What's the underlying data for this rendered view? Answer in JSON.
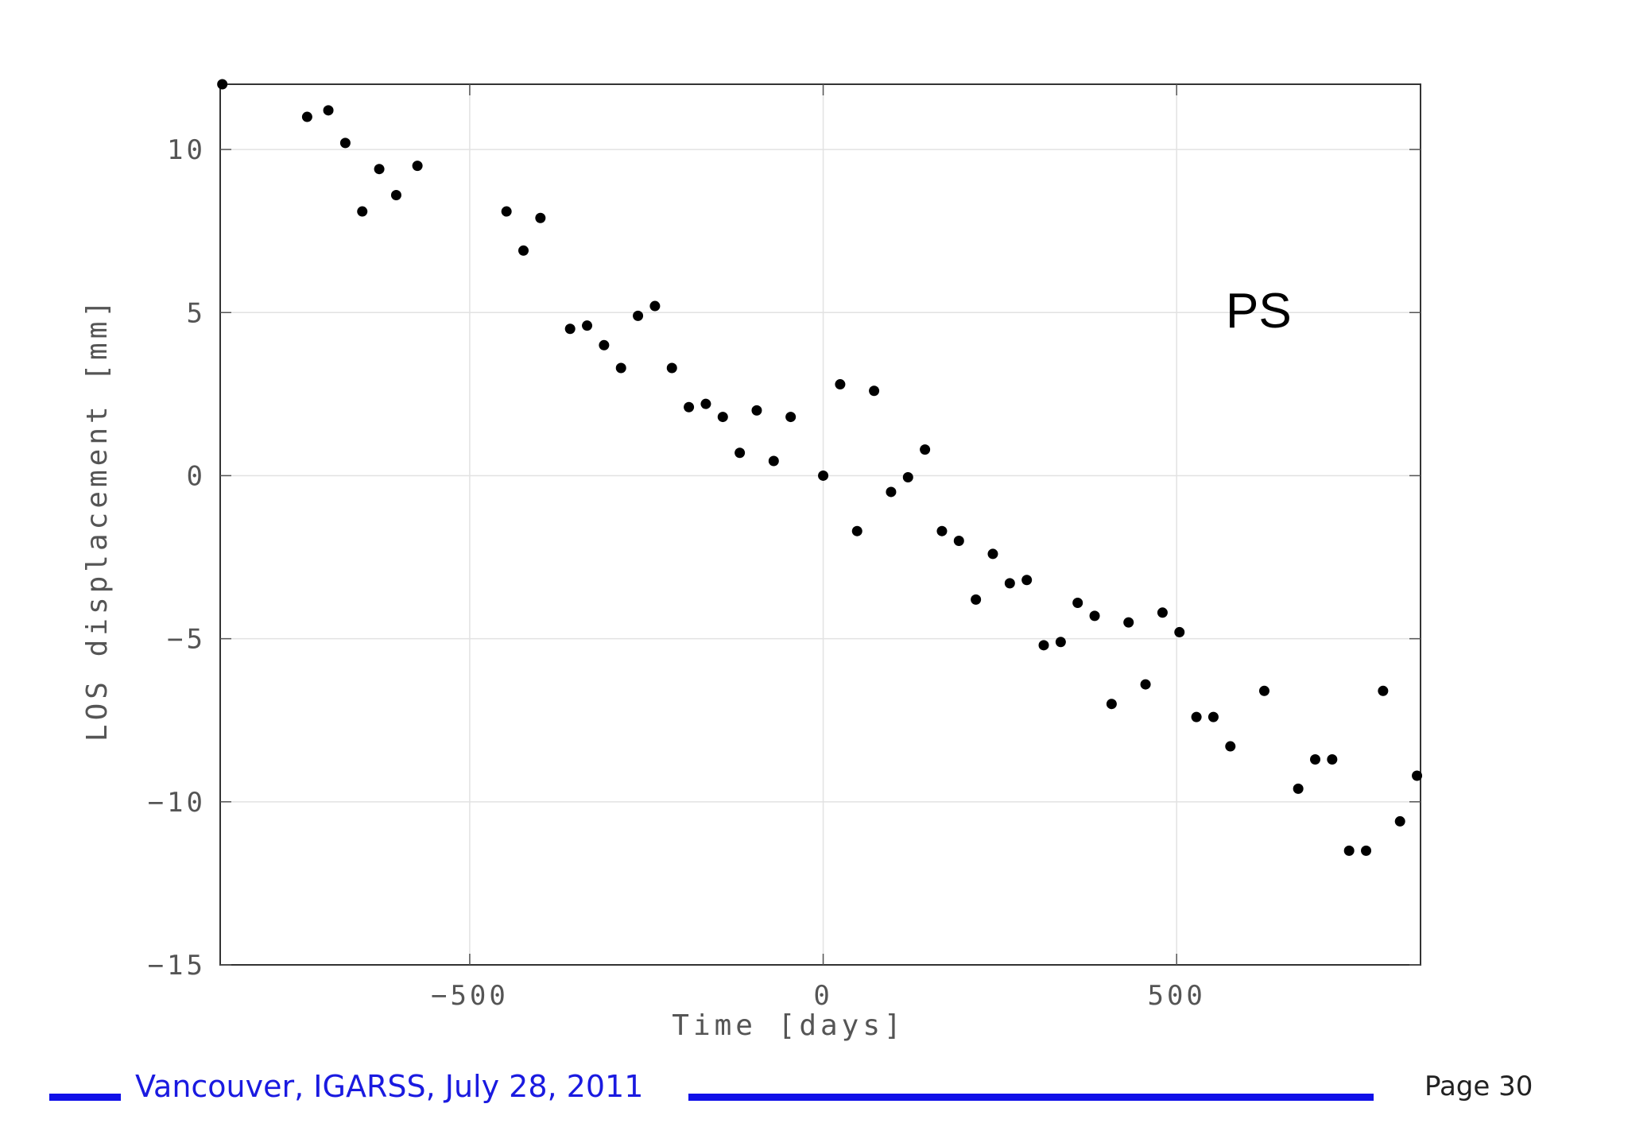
{
  "chart_data": {
    "type": "scatter",
    "xlabel": "Time [days]",
    "ylabel": "LOS displacement [mm]",
    "xlim": [
      -853,
      845
    ],
    "ylim": [
      -15,
      12
    ],
    "xticks": [
      -500,
      0,
      500
    ],
    "yticks": [
      -15,
      -10,
      -5,
      0,
      5,
      10
    ],
    "xtick_labels": [
      "−500",
      "0",
      "500"
    ],
    "ytick_labels": [
      "−15",
      "−10",
      "−5",
      "0",
      "5",
      "10"
    ],
    "grid": true,
    "marker_color": "#000000",
    "annotation": "PS",
    "points": [
      [
        -850,
        12.0
      ],
      [
        -730,
        11.0
      ],
      [
        -700,
        11.2
      ],
      [
        -676,
        10.2
      ],
      [
        -652,
        8.1
      ],
      [
        -628,
        9.4
      ],
      [
        -604,
        8.6
      ],
      [
        -574,
        9.5
      ],
      [
        -448,
        8.1
      ],
      [
        -424,
        6.9
      ],
      [
        -400,
        7.9
      ],
      [
        -358,
        4.5
      ],
      [
        -334,
        4.6
      ],
      [
        -310,
        4.0
      ],
      [
        -286,
        3.3
      ],
      [
        -262,
        4.9
      ],
      [
        -238,
        5.2
      ],
      [
        -214,
        3.3
      ],
      [
        -190,
        2.1
      ],
      [
        -166,
        2.2
      ],
      [
        -142,
        1.8
      ],
      [
        -118,
        0.7
      ],
      [
        -94,
        2.0
      ],
      [
        -70,
        0.45
      ],
      [
        -46,
        1.8
      ],
      [
        0,
        0.0
      ],
      [
        24,
        2.8
      ],
      [
        48,
        -1.7
      ],
      [
        72,
        2.6
      ],
      [
        96,
        -0.5
      ],
      [
        120,
        -0.05
      ],
      [
        144,
        0.8
      ],
      [
        168,
        -1.7
      ],
      [
        192,
        -2.0
      ],
      [
        216,
        -3.8
      ],
      [
        240,
        -2.4
      ],
      [
        264,
        -3.3
      ],
      [
        288,
        -3.2
      ],
      [
        312,
        -5.2
      ],
      [
        336,
        -5.1
      ],
      [
        360,
        -3.9
      ],
      [
        384,
        -4.3
      ],
      [
        408,
        -7.0
      ],
      [
        432,
        -4.5
      ],
      [
        456,
        -6.4
      ],
      [
        480,
        -4.2
      ],
      [
        504,
        -4.8
      ],
      [
        528,
        -7.4
      ],
      [
        552,
        -7.4
      ],
      [
        576,
        -8.3
      ],
      [
        624,
        -6.6
      ],
      [
        672,
        -9.6
      ],
      [
        696,
        -8.7
      ],
      [
        720,
        -8.7
      ],
      [
        744,
        -11.5
      ],
      [
        768,
        -11.5
      ],
      [
        792,
        -6.6
      ],
      [
        816,
        -10.6
      ],
      [
        840,
        -9.2
      ]
    ]
  },
  "footer": {
    "text": "Vancouver, IGARSS, July 28, 2011",
    "page": "Page 30",
    "line_color": "#1010e8"
  }
}
